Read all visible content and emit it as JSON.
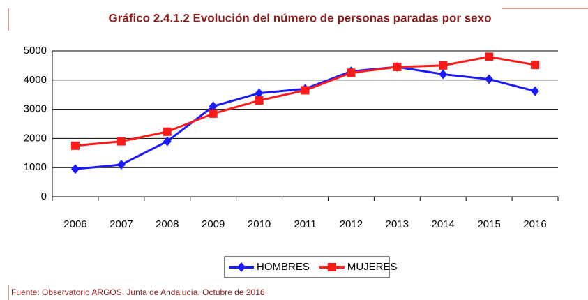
{
  "chart_data": {
    "type": "line",
    "title": "Gráfico 2.4.1.2 Evolución del número de personas paradas por sexo",
    "categories": [
      "2006",
      "2007",
      "2008",
      "2009",
      "2010",
      "2011",
      "2012",
      "2013",
      "2014",
      "2015",
      "2016"
    ],
    "series": [
      {
        "name": "HOMBRES",
        "color": "#1a1aff",
        "marker": "diamond",
        "values": [
          950,
          1100,
          1900,
          3100,
          3550,
          3700,
          4300,
          4450,
          4200,
          4030,
          3620
        ]
      },
      {
        "name": "MUJERES",
        "color": "#ff1a1a",
        "marker": "square",
        "values": [
          1750,
          1900,
          2230,
          2850,
          3300,
          3650,
          4250,
          4450,
          4500,
          4800,
          4520
        ]
      }
    ],
    "ylim": [
      0,
      5000
    ],
    "yticks": [
      0,
      1000,
      2000,
      3000,
      4000,
      5000
    ],
    "grid": true,
    "legend": "bottom",
    "source": "Fuente: Observatorio ARGOS. Junta de Andalucía. Octubre de 2016"
  }
}
